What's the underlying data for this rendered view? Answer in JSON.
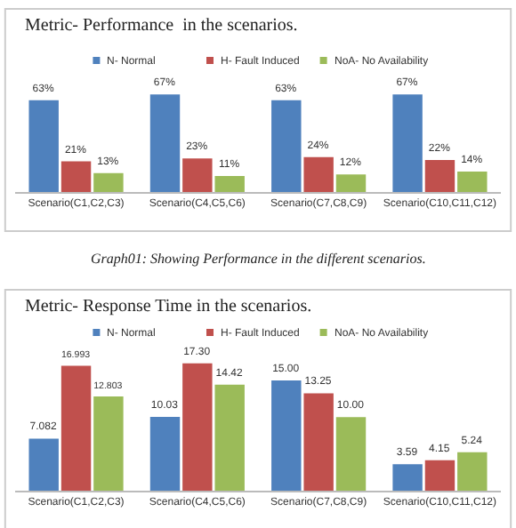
{
  "chart_data": [
    {
      "type": "bar",
      "title": "Metric- Performance  in the scenarios.",
      "categories": [
        "Scenario(C1,C2,C3)",
        "Scenario(C4,C5,C6)",
        "Scenario(C7,C8,C9)",
        "Scenario(C10,C11,C12)"
      ],
      "series": [
        {
          "name": "N- Normal",
          "color": "#4f81bd",
          "values": [
            63,
            67,
            63,
            67
          ],
          "value_labels": [
            "63%",
            "67%",
            "63%",
            "67%"
          ]
        },
        {
          "name": "H- Fault Induced",
          "color": "#c0504d",
          "values": [
            21,
            23,
            24,
            22
          ],
          "value_labels": [
            "21%",
            "23%",
            "24%",
            "22%"
          ]
        },
        {
          "name": "NoA- No Availability",
          "color": "#9bbb59",
          "values": [
            13,
            11,
            12,
            14
          ],
          "value_labels": [
            "13%",
            "11%",
            "12%",
            "14%"
          ]
        }
      ],
      "legend": "top",
      "annotations": [
        "Graph01: Showing Performance in the different scenarios."
      ]
    },
    {
      "type": "bar",
      "title": "Metric- Response Time in the scenarios.",
      "categories": [
        "Scenario(C1,C2,C3)",
        "Scenario(C4,C5,C6)",
        "Scenario(C7,C8,C9)",
        "Scenario(C10,C11,C12)"
      ],
      "series": [
        {
          "name": "N- Normal",
          "color": "#4f81bd",
          "values": [
            7.082,
            10.03,
            15.0,
            3.59
          ],
          "value_labels": [
            "7.082",
            "10.03",
            "15.00",
            "3.59"
          ]
        },
        {
          "name": "H- Fault Induced",
          "color": "#c0504d",
          "values": [
            16.993,
            17.3,
            13.25,
            4.15
          ],
          "value_labels": [
            "16.993",
            "17.30",
            "13.25",
            "4.15"
          ]
        },
        {
          "name": "NoA- No Availability",
          "color": "#9bbb59",
          "values": [
            12.803,
            14.42,
            10.0,
            5.24
          ],
          "value_labels": [
            "12.803",
            "14.42",
            "10.00",
            "5.24"
          ]
        }
      ],
      "legend": "top"
    }
  ]
}
